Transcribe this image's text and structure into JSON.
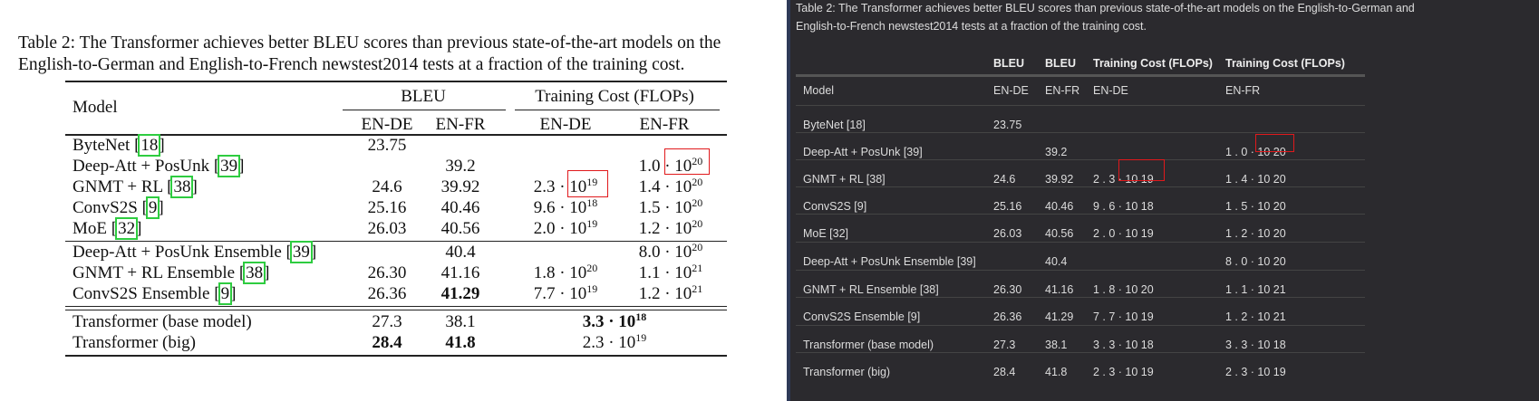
{
  "caption": {
    "line1": "Table 2: The Transformer achieves better BLEU scores than previous state-of-the-art models on the",
    "line2": "English-to-German and English-to-French newstest2014 tests at a fraction of the training cost.",
    "right_line1": "Table 2: The Transformer achieves better BLEU scores than previous state-of-the-art models on the English-to-German and",
    "right_line2": "English-to-French newstest2014 tests at a fraction of the training cost."
  },
  "headers": {
    "model": "Model",
    "bleu": "BLEU",
    "cost": "Training Cost (FLOPs)",
    "en_de": "EN-DE",
    "en_fr": "EN-FR"
  },
  "rows": [
    {
      "name": "ByteNet ",
      "cite": "18",
      "bleu_de": "23.75",
      "bleu_fr": "",
      "cost_de": "",
      "cost_fr": "",
      "r_cost_de": "",
      "r_cost_fr": ""
    },
    {
      "name": "Deep-Att + PosUnk ",
      "cite": "39",
      "bleu_de": "",
      "bleu_fr": "39.2",
      "cost_de": "",
      "cost_fr": "1.0 · 10^20",
      "r_cost_de": "",
      "r_cost_fr": "1 . 0 · 10 20"
    },
    {
      "name": "GNMT + RL ",
      "cite": "38",
      "bleu_de": "24.6",
      "bleu_fr": "39.92",
      "cost_de": "2.3 · 10^19",
      "cost_fr": "1.4 · 10^20",
      "r_cost_de": "2 . 3 · 10 19",
      "r_cost_fr": "1 . 4 · 10 20"
    },
    {
      "name": "ConvS2S ",
      "cite": "9",
      "bleu_de": "25.16",
      "bleu_fr": "40.46",
      "cost_de": "9.6 · 10^18",
      "cost_fr": "1.5 · 10^20",
      "r_cost_de": "9 . 6 · 10 18",
      "r_cost_fr": "1 . 5 · 10 20"
    },
    {
      "name": "MoE ",
      "cite": "32",
      "bleu_de": "26.03",
      "bleu_fr": "40.56",
      "cost_de": "2.0 · 10^19",
      "cost_fr": "1.2 · 10^20",
      "r_cost_de": "2 . 0 · 10 19",
      "r_cost_fr": "1 . 2 · 10 20"
    },
    {
      "name": "Deep-Att + PosUnk Ensemble ",
      "cite": "39",
      "bleu_de": "",
      "bleu_fr": "40.4",
      "cost_de": "",
      "cost_fr": "8.0 · 10^20",
      "r_cost_de": "",
      "r_cost_fr": "8 . 0 · 10 20"
    },
    {
      "name": "GNMT + RL Ensemble ",
      "cite": "38",
      "bleu_de": "26.30",
      "bleu_fr": "41.16",
      "cost_de": "1.8 · 10^20",
      "cost_fr": "1.1 · 10^21",
      "r_cost_de": "1 . 8 · 10 20",
      "r_cost_fr": "1 . 1 · 10 21"
    },
    {
      "name": "ConvS2S Ensemble ",
      "cite": "9",
      "bleu_de": "26.36",
      "bleu_fr": "41.29",
      "cost_de": "7.7 · 10^19",
      "cost_fr": "1.2 · 10^21",
      "r_cost_de": "7 . 7 · 10 19",
      "r_cost_fr": "1 . 2 · 10 21",
      "bold_fr": true
    },
    {
      "name": "Transformer (base model)",
      "cite": "",
      "bleu_de": "27.3",
      "bleu_fr": "38.1",
      "cost_merged": "3.3 · 10^18",
      "r_cost_de": "3 . 3 · 10 18",
      "r_cost_fr": "3 . 3 · 10 18",
      "bold_cost": true
    },
    {
      "name": "Transformer (big)",
      "cite": "",
      "bleu_de": "28.4",
      "bleu_fr": "41.8",
      "cost_merged": "2.3 · 10^19",
      "r_cost_de": "2 . 3 · 10 19",
      "r_cost_fr": "2 . 3 · 10 19",
      "bold_de": true,
      "bold_fr": true
    }
  ],
  "colors": {
    "highlight_box": "#e0191c",
    "citation_box": "#2ecc40",
    "dark_bg": "#2b2a2e"
  }
}
